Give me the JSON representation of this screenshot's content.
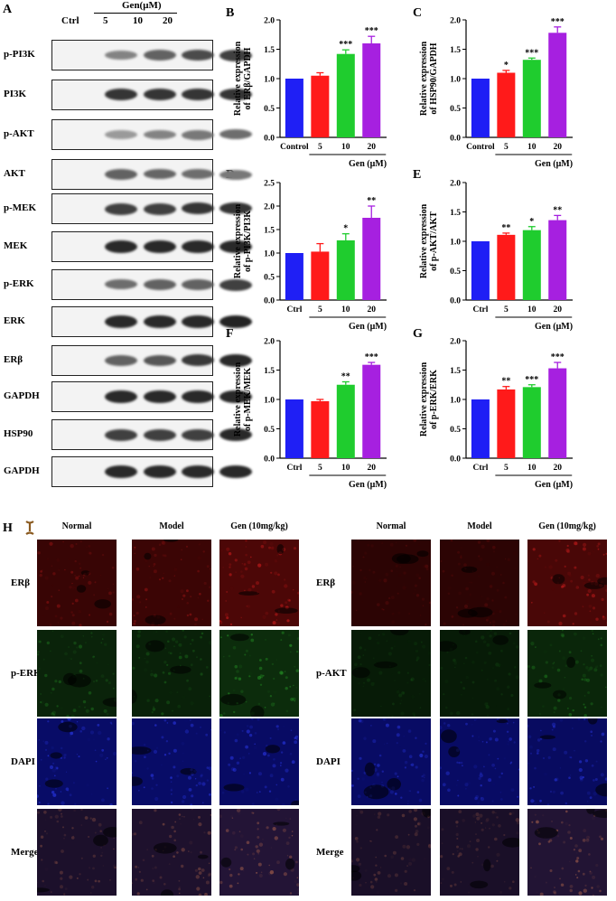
{
  "panel_letters": {
    "A": "A",
    "B": "B",
    "C": "C",
    "D": "D",
    "E": "E",
    "F": "F",
    "G": "G",
    "H": "H"
  },
  "western_blot": {
    "treatment_label": "Gen(μM)",
    "lanes": [
      "Ctrl",
      "5",
      "10",
      "20"
    ],
    "proteins": [
      "p-PI3K",
      "PI3K",
      "p-AKT",
      "AKT",
      "p-MEK",
      "MEK",
      "p-ERK",
      "ERK",
      "ERβ",
      "GAPDH",
      "HSP90",
      "GAPDH"
    ],
    "band_intensity": [
      [
        0.55,
        0.7,
        0.8,
        0.85
      ],
      [
        0.9,
        0.9,
        0.9,
        0.9
      ],
      [
        0.45,
        0.55,
        0.6,
        0.65
      ],
      [
        0.7,
        0.68,
        0.65,
        0.6
      ],
      [
        0.85,
        0.85,
        0.9,
        0.9
      ],
      [
        0.95,
        0.95,
        0.95,
        0.95
      ],
      [
        0.65,
        0.7,
        0.7,
        0.85
      ],
      [
        0.95,
        0.95,
        0.95,
        0.98
      ],
      [
        0.7,
        0.75,
        0.88,
        0.95
      ],
      [
        0.95,
        0.95,
        0.95,
        0.95
      ],
      [
        0.85,
        0.85,
        0.85,
        0.95
      ],
      [
        0.95,
        0.95,
        0.95,
        0.95
      ]
    ]
  },
  "colors": {
    "ctrl": "#1f1ff5",
    "g5": "#ff1a1a",
    "g10": "#1fcc2e",
    "g20": "#a620e0"
  },
  "chart_data": [
    {
      "panel": "B",
      "type": "bar",
      "categories": [
        "Control",
        "5",
        "10",
        "20"
      ],
      "values": [
        1.0,
        1.05,
        1.42,
        1.6
      ],
      "errors": [
        0,
        0.05,
        0.07,
        0.12
      ],
      "sig": [
        "",
        "",
        "***",
        "***"
      ],
      "ylabel": "Relative expression of ERβ/GAPDH",
      "xgroup": "Gen (μM)",
      "ylim": [
        0,
        2.0
      ],
      "ticks": [
        "0.0",
        "0.5",
        "1.0",
        "1.5",
        "2.0"
      ]
    },
    {
      "panel": "C",
      "type": "bar",
      "categories": [
        "Control",
        "5",
        "10",
        "20"
      ],
      "values": [
        1.0,
        1.1,
        1.32,
        1.78
      ],
      "errors": [
        0,
        0.04,
        0.03,
        0.1
      ],
      "sig": [
        "",
        "*",
        "***",
        "***"
      ],
      "ylabel": "Relative expression of HSP90/GAPDH",
      "xgroup": "Gen (μM)",
      "ylim": [
        0,
        2.0
      ],
      "ticks": [
        "0.0",
        "0.5",
        "1.0",
        "1.5",
        "2.0"
      ]
    },
    {
      "panel": "D",
      "type": "bar",
      "categories": [
        "Ctrl",
        "5",
        "10",
        "20"
      ],
      "values": [
        1.0,
        1.03,
        1.27,
        1.75
      ],
      "errors": [
        0,
        0.17,
        0.14,
        0.25
      ],
      "sig": [
        "",
        "",
        "*",
        "**"
      ],
      "ylabel": "Relative expression of p-PI3K/PI3K",
      "xgroup": "Gen (μM)",
      "ylim": [
        0,
        2.5
      ],
      "ticks": [
        "0.0",
        "0.5",
        "1.0",
        "1.5",
        "2.0",
        "2.5"
      ]
    },
    {
      "panel": "E",
      "type": "bar",
      "categories": [
        "Ctrl",
        "5",
        "10",
        "20"
      ],
      "values": [
        1.0,
        1.11,
        1.19,
        1.36
      ],
      "errors": [
        0,
        0.03,
        0.06,
        0.08
      ],
      "sig": [
        "",
        "**",
        "*",
        "**"
      ],
      "ylabel": "Relative expression of p-AKT/AKT",
      "xgroup": "Gen (μM)",
      "ylim": [
        0,
        2.0
      ],
      "ticks": [
        "0.0",
        "0.5",
        "1.0",
        "1.5",
        "2.0"
      ]
    },
    {
      "panel": "F",
      "type": "bar",
      "categories": [
        "Ctrl",
        "5",
        "10",
        "20"
      ],
      "values": [
        1.0,
        0.97,
        1.25,
        1.59
      ],
      "errors": [
        0,
        0.03,
        0.05,
        0.04
      ],
      "sig": [
        "",
        "",
        "**",
        "***"
      ],
      "ylabel": "Relative expression of p-MEK/MEK",
      "xgroup": "Gen (μM)",
      "ylim": [
        0,
        2.0
      ],
      "ticks": [
        "0.0",
        "0.5",
        "1.0",
        "1.5",
        "2.0"
      ]
    },
    {
      "panel": "G",
      "type": "bar",
      "categories": [
        "Ctrl",
        "5",
        "10",
        "20"
      ],
      "values": [
        1.0,
        1.17,
        1.21,
        1.53
      ],
      "errors": [
        0,
        0.05,
        0.04,
        0.1
      ],
      "sig": [
        "",
        "**",
        "***",
        "***"
      ],
      "ylabel": "Relative expression of p-ERK/ERK",
      "xgroup": "Gen (μM)",
      "ylim": [
        0,
        2.0
      ],
      "ticks": [
        "0.0",
        "0.5",
        "1.0",
        "1.5",
        "2.0"
      ]
    }
  ],
  "if_panel": {
    "left": {
      "columns": [
        "Normal",
        "Model",
        "Gen (10mg/kg)"
      ],
      "rows": [
        "ERβ",
        "p-ERK",
        "DAPI",
        "Merge"
      ]
    },
    "right": {
      "columns": [
        "Normal",
        "Model",
        "Gen (10mg/kg)"
      ],
      "rows": [
        "ERβ",
        "p-AKT",
        "DAPI",
        "Merge"
      ]
    },
    "row_colors": [
      "#5a0808",
      "#103a10",
      "#0a0e7a",
      "#2a1840"
    ],
    "intensity": {
      "left": [
        [
          0.5,
          0.55,
          0.9
        ],
        [
          0.45,
          0.4,
          0.75
        ],
        [
          0.9,
          0.9,
          0.85
        ],
        [
          0.6,
          0.65,
          0.9
        ]
      ],
      "right": [
        [
          0.25,
          0.25,
          0.85
        ],
        [
          0.2,
          0.2,
          0.55
        ],
        [
          0.85,
          0.85,
          0.8
        ],
        [
          0.5,
          0.5,
          0.85
        ]
      ]
    }
  }
}
